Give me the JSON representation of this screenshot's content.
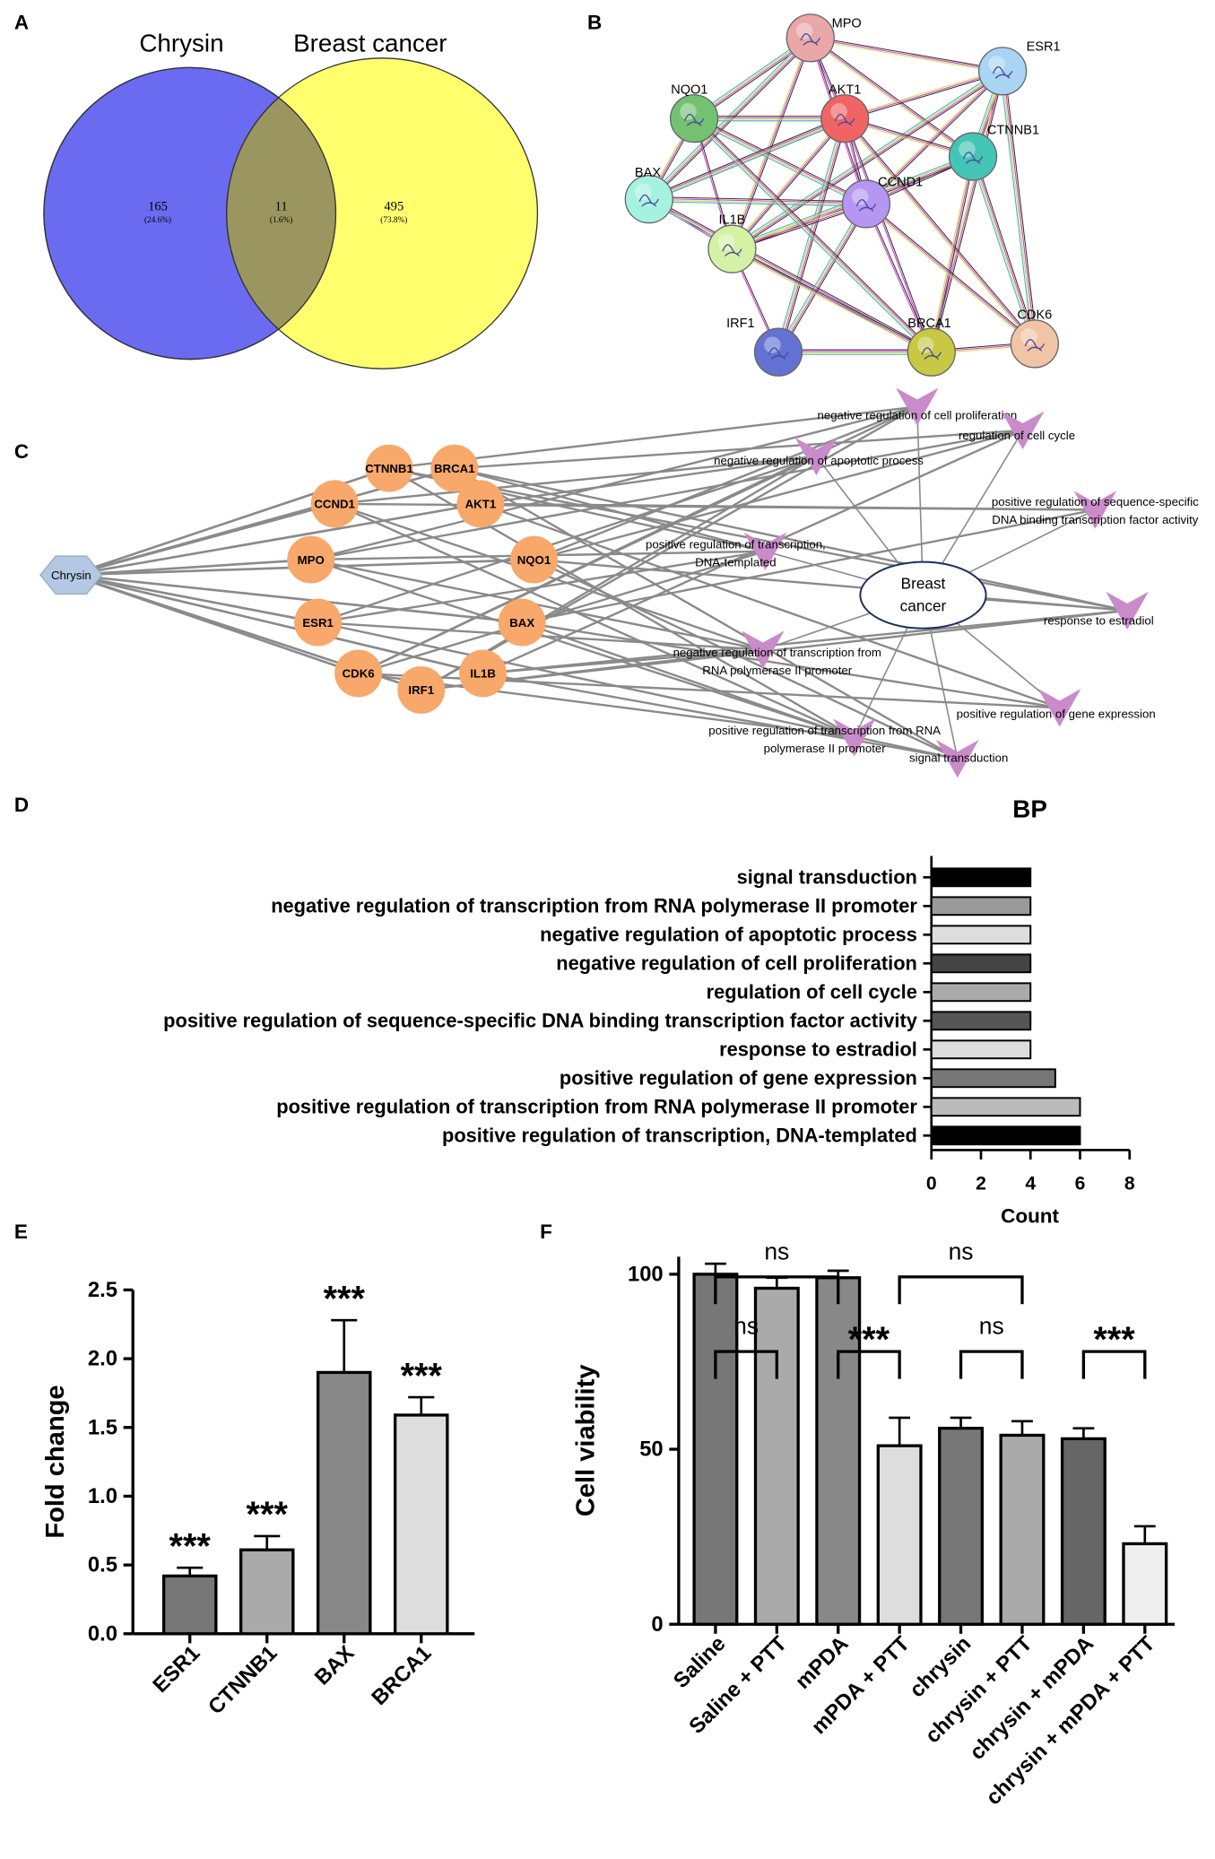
{
  "panels": [
    "A",
    "B",
    "C",
    "D",
    "E",
    "F"
  ],
  "venn": {
    "sets": [
      "Chrysin",
      "Breast cancer"
    ],
    "regions": [
      {
        "count": 165,
        "percent": "(24.6%)"
      },
      {
        "count": 11,
        "percent": "(1.6%)"
      },
      {
        "count": 495,
        "percent": "(73.8%)"
      }
    ]
  },
  "ppi_network": {
    "nodes": [
      "MPO",
      "ESR1",
      "NQO1",
      "AKT1",
      "CTNNB1",
      "BAX",
      "CCND1",
      "IL1B",
      "IRF1",
      "BRCA1",
      "CDK6"
    ]
  },
  "network": {
    "drug": "Chrysin",
    "disease": [
      "Breast",
      "cancer"
    ],
    "genes": [
      "CTNNB1",
      "BRCA1",
      "CCND1",
      "AKT1",
      "MPO",
      "NQO1",
      "ESR1",
      "BAX",
      "CDK6",
      "IL1B",
      "IRF1"
    ],
    "terms": [
      {
        "lines": [
          "negative regulation of cell proliferation"
        ]
      },
      {
        "lines": [
          "regulation of cell cycle"
        ]
      },
      {
        "lines": [
          "negative regulation of apoptotic process"
        ]
      },
      {
        "lines": [
          "positive regulation of sequence-specific",
          "DNA binding transcription factor activity"
        ]
      },
      {
        "lines": [
          "positive regulation of transcription,",
          "DNA-templated"
        ]
      },
      {
        "lines": [
          "response to estradiol"
        ]
      },
      {
        "lines": [
          "negative regulation of transcription from",
          "RNA polymerase II promoter"
        ]
      },
      {
        "lines": [
          "positive regulation of gene expression"
        ]
      },
      {
        "lines": [
          "positive regulation of transcription from RNA",
          "polymerase II promoter"
        ]
      },
      {
        "lines": [
          "signal transduction"
        ]
      }
    ]
  },
  "chart_data": [
    {
      "type": "hbar",
      "title": "BP",
      "x_label": "Count",
      "categories": [
        "signal transduction",
        "negative regulation of transcription from RNA polymerase II promoter",
        "negative regulation of apoptotic process",
        "negative regulation of cell proliferation",
        "regulation of cell cycle",
        "positive regulation of sequence-specific DNA binding transcription factor activity",
        "response to estradiol",
        "positive regulation of gene expression",
        "positive regulation of transcription from RNA polymerase II promoter",
        "positive regulation of transcription, DNA-templated"
      ],
      "values": [
        4,
        4,
        4,
        4,
        4,
        4,
        4,
        5,
        6,
        6
      ],
      "colors": [
        "#000000",
        "#9a9a9a",
        "#dddddd",
        "#444444",
        "#aaaaaa",
        "#555555",
        "#dddddd",
        "#777777",
        "#bbbbbb",
        "#000000"
      ],
      "xlim": [
        0,
        8
      ],
      "xticks": [
        0,
        2,
        4,
        6,
        8
      ]
    },
    {
      "type": "errbar",
      "y_label": "Fold change",
      "categories": [
        "ESR1",
        "CTNNB1",
        "BAX",
        "BRCA1"
      ],
      "values": [
        0.42,
        0.61,
        1.9,
        1.59
      ],
      "errors": [
        0.06,
        0.1,
        0.38,
        0.13
      ],
      "annotations": [
        "***",
        "***",
        "***",
        "***"
      ],
      "colors": [
        "#777777",
        "#aaaaaa",
        "#888888",
        "#dddddd"
      ],
      "ylim": [
        0,
        2.5
      ],
      "yticks": [
        {
          "value": 0,
          "label": "0.0"
        },
        0.5,
        {
          "value": 1,
          "label": "1.0"
        },
        1.5,
        {
          "value": 2,
          "label": "2.0"
        },
        2.5
      ]
    },
    {
      "type": "errbar",
      "y_label": "Cell viability",
      "categories": [
        "Saline",
        "Saline + PTT",
        "mPDA",
        "mPDA + PTT",
        "chrysin",
        "chrysin + PTT",
        "chrysin + mPDA",
        "chrysin + mPDA + PTT"
      ],
      "values": [
        100,
        96,
        99,
        51,
        56,
        54,
        53,
        23
      ],
      "errors": [
        3,
        3,
        2,
        8,
        3,
        4,
        3,
        5
      ],
      "colors": [
        "#777777",
        "#aaaaaa",
        "#888888",
        "#dddddd",
        "#777777",
        "#aaaaaa",
        "#666666",
        "#eeeeee"
      ],
      "ylim": [
        0,
        105
      ],
      "yticks": [
        0,
        50,
        100
      ],
      "comparisons": [
        {
          "from": "Saline",
          "to": "mPDA",
          "label": "ns"
        },
        {
          "from": "mPDA + PTT",
          "to": "chrysin + PTT",
          "label": "ns"
        },
        {
          "from": "Saline",
          "to": "Saline + PTT",
          "label": "ns"
        },
        {
          "from": "mPDA",
          "to": "mPDA + PTT",
          "label": "***"
        },
        {
          "from": "chrysin",
          "to": "chrysin + PTT",
          "label": "ns"
        },
        {
          "from": "chrysin + mPDA",
          "to": "chrysin + mPDA + PTT",
          "label": "***"
        }
      ]
    }
  ]
}
